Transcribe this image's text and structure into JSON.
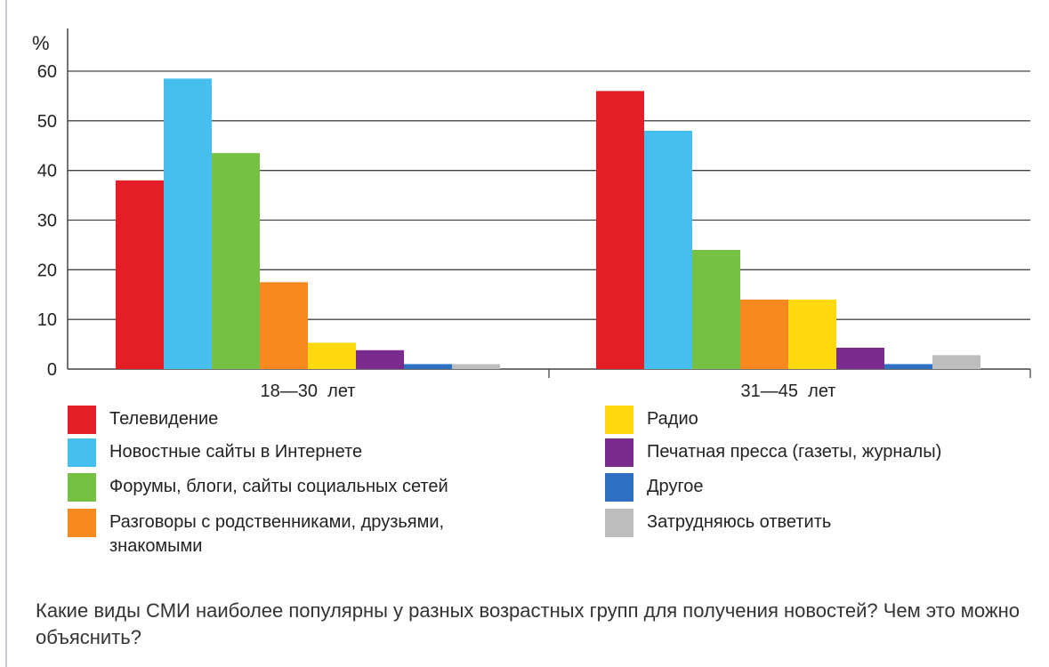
{
  "chart_data": {
    "type": "bar",
    "ylabel": "%",
    "ylim": [
      0,
      60
    ],
    "yticks": [
      0,
      10,
      20,
      30,
      40,
      50,
      60
    ],
    "grid": true,
    "legend_position": "bottom",
    "categories": [
      "18—30  лет",
      "31—45  лет"
    ],
    "series": [
      {
        "name": "Телевидение",
        "color": "#e41e26",
        "values": [
          38,
          56
        ]
      },
      {
        "name": "Новостные сайты в Интернете",
        "color": "#46bfee",
        "values": [
          58.5,
          48
        ]
      },
      {
        "name": "Форумы, блоги, сайты социальных сетей",
        "color": "#76c043",
        "values": [
          43.5,
          24
        ]
      },
      {
        "name": "Разговоры с родственниками, друзьями, знакомыми",
        "color": "#f6891f",
        "values": [
          17.5,
          14
        ]
      },
      {
        "name": "Радио",
        "color": "#ffd90f",
        "values": [
          5.3,
          14
        ]
      },
      {
        "name": "Печатная пресса (газеты, журналы)",
        "color": "#7a2c8e",
        "values": [
          3.8,
          4.3
        ]
      },
      {
        "name": "Другое",
        "color": "#2f6fbf",
        "values": [
          1,
          1
        ]
      },
      {
        "name": "Затрудняюсь ответить",
        "color": "#bdbdbd",
        "values": [
          1,
          2.8
        ]
      }
    ]
  },
  "caption": "Какие виды СМИ наиболее популярны у разных возрастных групп для получения новостей? Чем это можно объяснить?"
}
